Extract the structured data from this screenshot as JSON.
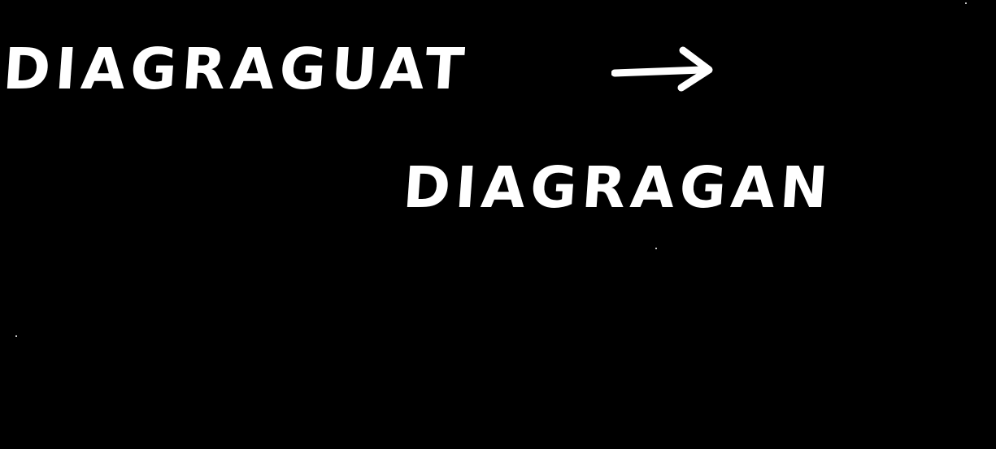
{
  "note": {
    "line_1": "DIAGRAGUAT",
    "line_2": "DIAGRAGAN"
  },
  "icons": {
    "first_arrow": "right-arrow-icon"
  },
  "colors": {
    "background": "#000000",
    "ink": "#ffffff"
  }
}
